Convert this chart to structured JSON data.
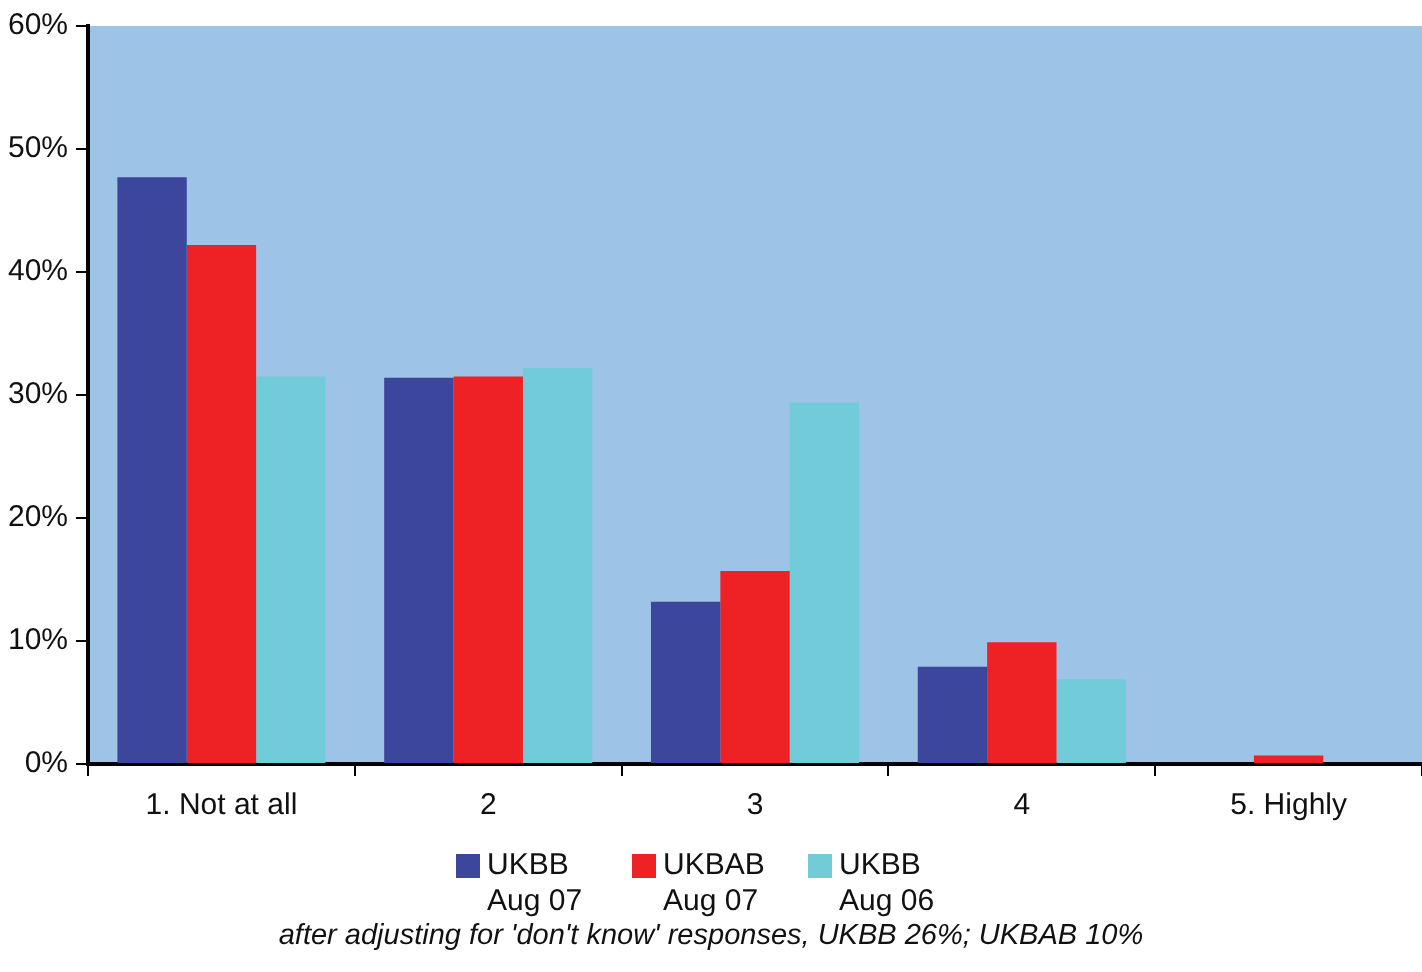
{
  "chart_data": {
    "type": "bar",
    "categories": [
      "1. Not at all",
      "2",
      "3",
      "4",
      "5. Highly"
    ],
    "series": [
      {
        "name": "UKBB Aug 07",
        "color": "#3b469c",
        "values": [
          47.7,
          31.4,
          13.2,
          7.9,
          0
        ]
      },
      {
        "name": "UKBAB Aug 07",
        "color": "#ee2225",
        "values": [
          42.2,
          31.5,
          15.7,
          9.9,
          0.7
        ]
      },
      {
        "name": "UKBB Aug 06",
        "color": "#72cbd9",
        "values": [
          31.5,
          32.2,
          29.4,
          6.9,
          0
        ]
      }
    ],
    "ylim": [
      0,
      60
    ],
    "yticks": [
      {
        "value": 0,
        "label": "0%"
      },
      {
        "value": 10,
        "label": "10%"
      },
      {
        "value": 20,
        "label": "20%"
      },
      {
        "value": 30,
        "label": "30%"
      },
      {
        "value": 40,
        "label": "40%"
      },
      {
        "value": 50,
        "label": "50%"
      },
      {
        "value": 60,
        "label": "60%"
      }
    ],
    "grid": false,
    "legend": "bottom",
    "annotations": [
      "after adjusting for 'don't know' responses, UKBB 26%; UKBAB 10%"
    ]
  }
}
